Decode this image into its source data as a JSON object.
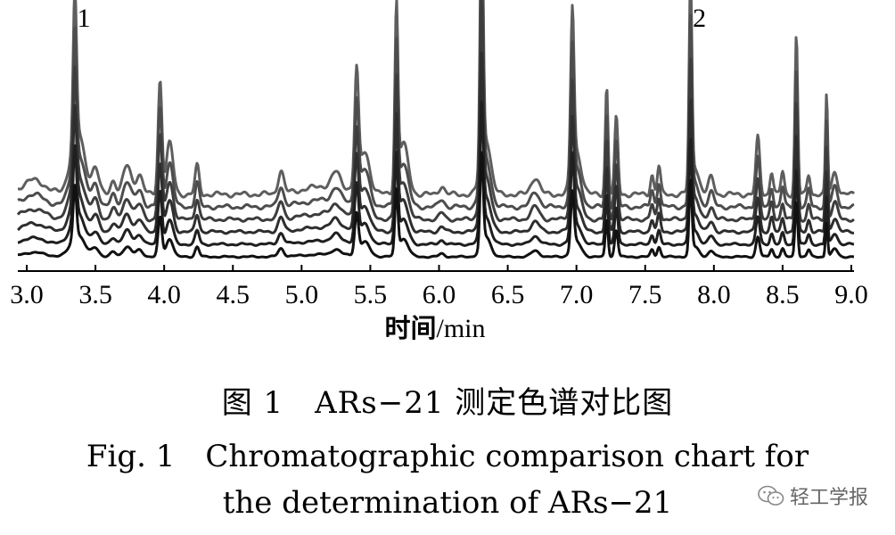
{
  "chart_data": {
    "type": "line",
    "title": "",
    "xlabel": "时间/min",
    "xlabel_main": "时间",
    "xlabel_unit": "/min",
    "ylabel": "",
    "xlim": [
      3.0,
      9.0
    ],
    "x_ticks": [
      3.0,
      3.5,
      4.0,
      4.5,
      5.0,
      5.5,
      6.0,
      6.5,
      7.0,
      7.5,
      8.0,
      8.5,
      9.0
    ],
    "x_tick_labels": [
      "3.0",
      "3.5",
      "4.0",
      "4.5",
      "5.0",
      "5.5",
      "6.0",
      "6.5",
      "7.0",
      "7.5",
      "8.0",
      "8.5",
      "9.0"
    ],
    "grid": false,
    "legend": "none",
    "num_traces": 6,
    "trace_colors": [
      "#111111",
      "#1f1f1f",
      "#2e2e2e",
      "#3d3d3d",
      "#4d4d4d",
      "#5e5e5e"
    ],
    "annotations": [
      {
        "text": "1",
        "x": 3.35
      },
      {
        "text": "2",
        "x": 7.83
      }
    ],
    "peaks": [
      {
        "x": 3.35,
        "h": 0.52,
        "w": 0.012
      },
      {
        "x": 3.37,
        "h": 0.22,
        "w": 0.05
      },
      {
        "x": 3.5,
        "h": 0.09,
        "w": 0.025
      },
      {
        "x": 3.63,
        "h": 0.05,
        "w": 0.02
      },
      {
        "x": 3.73,
        "h": 0.1,
        "w": 0.03
      },
      {
        "x": 3.82,
        "h": 0.07,
        "w": 0.025
      },
      {
        "x": 3.97,
        "h": 0.4,
        "w": 0.014
      },
      {
        "x": 4.04,
        "h": 0.18,
        "w": 0.025
      },
      {
        "x": 4.24,
        "h": 0.1,
        "w": 0.015
      },
      {
        "x": 4.85,
        "h": 0.08,
        "w": 0.02
      },
      {
        "x": 5.25,
        "h": 0.05,
        "w": 0.03
      },
      {
        "x": 5.4,
        "h": 0.4,
        "w": 0.014
      },
      {
        "x": 5.46,
        "h": 0.14,
        "w": 0.035
      },
      {
        "x": 5.69,
        "h": 0.62,
        "w": 0.011
      },
      {
        "x": 5.74,
        "h": 0.18,
        "w": 0.035
      },
      {
        "x": 6.02,
        "h": 0.03,
        "w": 0.02
      },
      {
        "x": 6.31,
        "h": 0.92,
        "w": 0.011
      },
      {
        "x": 6.34,
        "h": 0.2,
        "w": 0.035
      },
      {
        "x": 6.7,
        "h": 0.06,
        "w": 0.03
      },
      {
        "x": 6.97,
        "h": 0.56,
        "w": 0.012
      },
      {
        "x": 7.0,
        "h": 0.15,
        "w": 0.035
      },
      {
        "x": 7.22,
        "h": 0.38,
        "w": 0.01
      },
      {
        "x": 7.29,
        "h": 0.27,
        "w": 0.012
      },
      {
        "x": 7.55,
        "h": 0.07,
        "w": 0.012
      },
      {
        "x": 7.6,
        "h": 0.1,
        "w": 0.012
      },
      {
        "x": 7.83,
        "h": 0.72,
        "w": 0.01
      },
      {
        "x": 7.86,
        "h": 0.1,
        "w": 0.03
      },
      {
        "x": 7.98,
        "h": 0.06,
        "w": 0.02
      },
      {
        "x": 8.32,
        "h": 0.2,
        "w": 0.014
      },
      {
        "x": 8.42,
        "h": 0.08,
        "w": 0.012
      },
      {
        "x": 8.5,
        "h": 0.08,
        "w": 0.012
      },
      {
        "x": 8.6,
        "h": 0.56,
        "w": 0.01
      },
      {
        "x": 8.69,
        "h": 0.07,
        "w": 0.012
      },
      {
        "x": 8.82,
        "h": 0.35,
        "w": 0.008
      },
      {
        "x": 8.88,
        "h": 0.08,
        "w": 0.02
      }
    ]
  },
  "caption": {
    "cn": "图 1　ARs−21 测定色谱对比图",
    "en_line1": "Fig. 1　Chromatographic comparison chart for",
    "en_line2": "the determination of ARs−21"
  },
  "watermark": {
    "text": "轻工学报",
    "icon": "wechat-icon",
    "color": "#666666"
  }
}
